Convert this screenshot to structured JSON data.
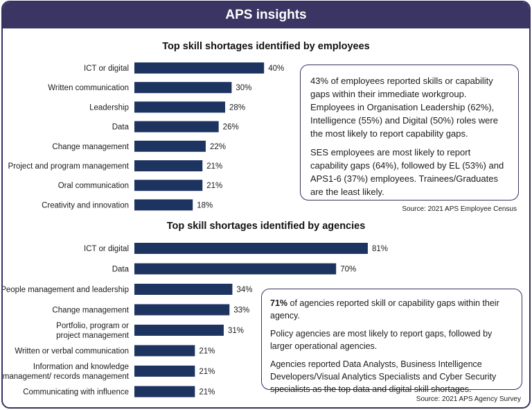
{
  "header": {
    "title": "APS insights"
  },
  "employees": {
    "title": "Top skill shortages identified by employees",
    "callout": {
      "p1": "43% of employees reported skills or capability gaps within their immediate workgroup. Employees in Organisation Leadership (62%), Intelligence (55%) and Digital (50%) roles were the most likely to report capability gaps.",
      "p2": "SES employees are most likely to report capability gaps (64%), followed by EL (53%) and APS1-6 (37%) employees. Trainees/Graduates are the least likely."
    },
    "source": "Source: 2021 APS Employee Census"
  },
  "agencies": {
    "title": "Top skill shortages identified by agencies",
    "callout": {
      "p1_bold": "71%",
      "p1_rest": " of agencies reported skill or capability gaps within their agency.",
      "p2": "Policy agencies are most likely to report gaps, followed by larger operational agencies.",
      "p3": "Agencies reported Data Analysts, Business Intelligence Developers/Visual Analytics Specialists and Cyber Security specialists as the top data and digital skill shortages."
    },
    "source": "Source: 2021 APS Agency Survey"
  },
  "colors": {
    "bar": "#1d3461",
    "header": "#3b3563",
    "border": "#37315f"
  },
  "chart_data": [
    {
      "type": "bar",
      "orientation": "horizontal",
      "title": "Top skill shortages identified by employees",
      "categories": [
        "ICT or digital",
        "Written communication",
        "Leadership",
        "Data",
        "Change management",
        "Project and program management",
        "Oral communication",
        "Creativity and innovation"
      ],
      "values": [
        40,
        30,
        28,
        26,
        22,
        21,
        21,
        18
      ],
      "value_suffix": "%"
    },
    {
      "type": "bar",
      "orientation": "horizontal",
      "title": "Top skill shortages identified by agencies",
      "categories": [
        [
          "ICT or digital"
        ],
        [
          "Data"
        ],
        [
          "People management and leadership"
        ],
        [
          "Change management"
        ],
        [
          "Portfolio, program or",
          "project management"
        ],
        [
          "Written or verbal communication"
        ],
        [
          "Information and knowledge",
          "management/ records management"
        ],
        [
          "Communicating with influence"
        ]
      ],
      "values": [
        81,
        70,
        34,
        33,
        31,
        21,
        21,
        21
      ],
      "value_suffix": "%"
    }
  ]
}
